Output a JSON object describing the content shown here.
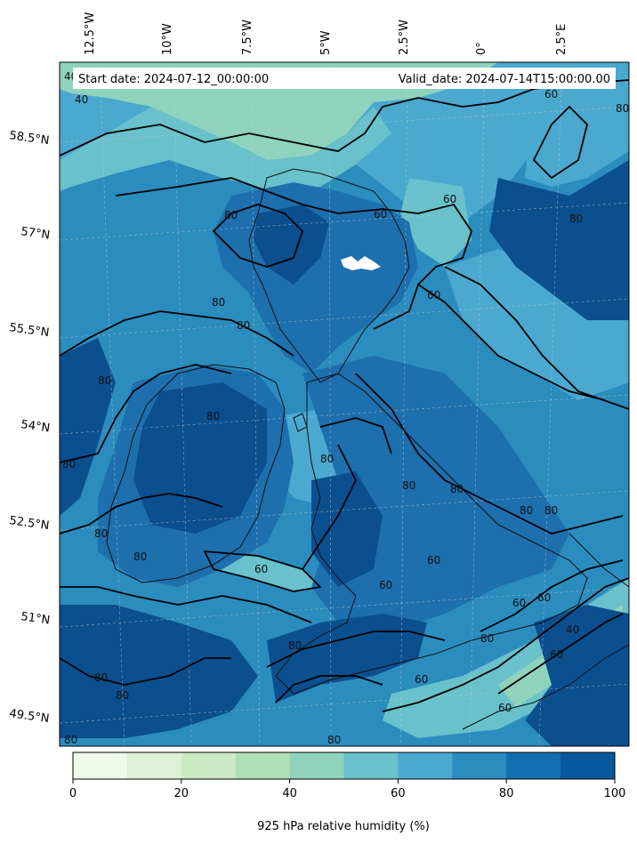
{
  "map": {
    "start_date": "Start date: 2024-07-12_00:00:00",
    "valid_date": "Valid_date: 2024-07-14T15:00:00.00",
    "lon_labels": [
      "12.5°W",
      "10°W",
      "7.5°W",
      "5°W",
      "2.5°W",
      "0°",
      "2.5°E"
    ],
    "lat_labels": [
      "58.5°N",
      "57°N",
      "55.5°N",
      "54°N",
      "52.5°N",
      "51°N",
      "49.5°N"
    ],
    "contour_labels": [
      "40",
      "40",
      "60",
      "80",
      "60",
      "80",
      "60",
      "80",
      "80",
      "80",
      "80",
      "80",
      "80",
      "80",
      "80",
      "80",
      "60",
      "60",
      "80",
      "80",
      "60",
      "80",
      "80",
      "60",
      "60",
      "40",
      "60",
      "80",
      "80",
      "60",
      "60",
      "80",
      "80",
      "80",
      "60",
      "80"
    ],
    "colors": {
      "ocean_light": "#7ec8c9",
      "ocean_mid": "#4ba8cf",
      "humid_80": "#2b8cbe",
      "humid_90": "#1d6fae",
      "humid_100": "#0b4f8f",
      "dry_40": "#8fd3bd"
    }
  },
  "colorbar": {
    "ticks": [
      "0",
      "20",
      "40",
      "60",
      "80",
      "100"
    ],
    "label": "925 hPa relative humidity (%)",
    "colors": [
      "#f0f9e8",
      "#dcf1d6",
      "#ccebc5",
      "#b0e0b6",
      "#8fd3bd",
      "#68c1cb",
      "#4ba8cf",
      "#2b8cbe",
      "#136fb0",
      "#08589e"
    ]
  }
}
